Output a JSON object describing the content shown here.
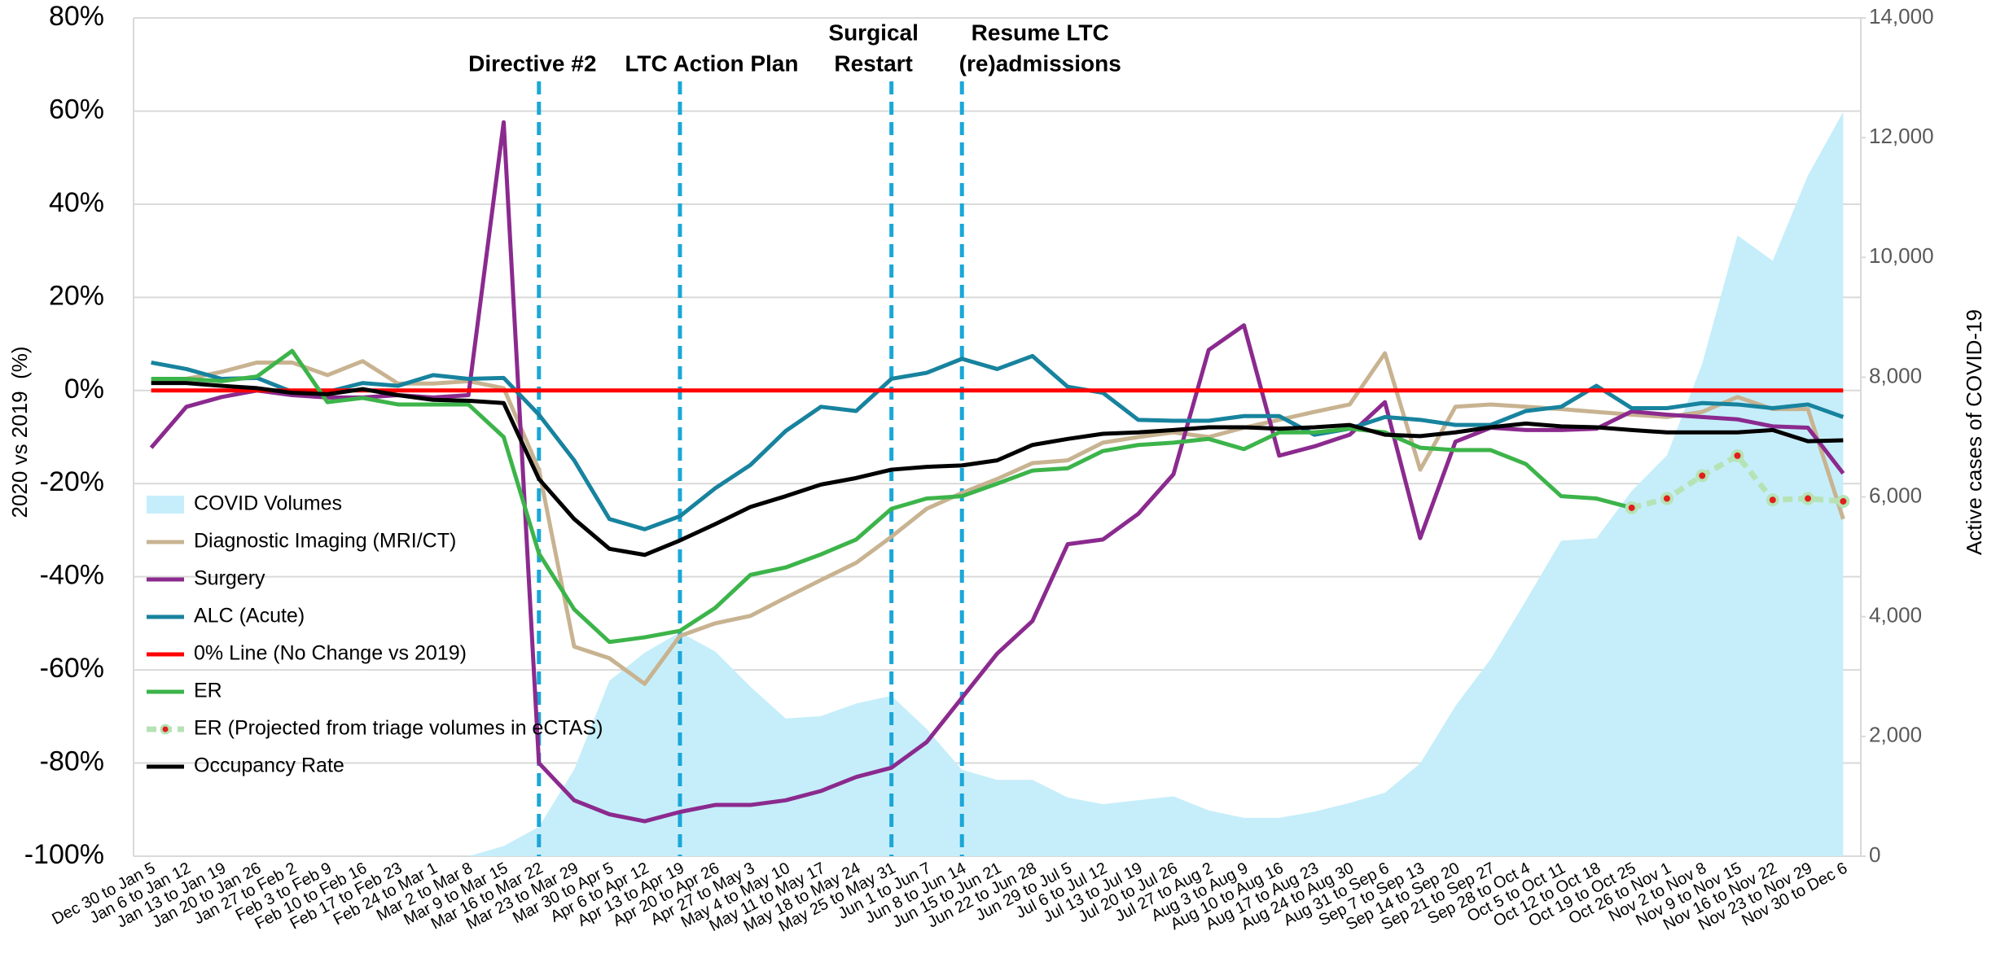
{
  "chart_data": {
    "type": "line",
    "y_label": "2020 vs 2019  (%)",
    "y2_label": "Active cases of COVID-19",
    "categories": [
      "Dec 30 to Jan 5",
      "Jan 6 to Jan 12",
      "Jan 13 to Jan 19",
      "Jan 20 to Jan 26",
      "Jan 27 to Feb 2",
      "Feb 3 to Feb 9",
      "Feb 10 to Feb 16",
      "Feb 17 to Feb 23",
      "Feb 24 to Mar 1",
      "Mar 2 to Mar 8",
      "Mar 9 to Mar 15",
      "Mar 16 to Mar 22",
      "Mar 23 to Mar 29",
      "Mar 30 to Apr 5",
      "Apr 6 to Apr 12",
      "Apr 13 to Apr 19",
      "Apr 20 to Apr 26",
      "Apr 27 to May 3",
      "May 4 to May 10",
      "May 11 to May 17",
      "May 18 to May 24",
      "May 25 to May 31",
      "Jun 1 to Jun 7",
      "Jun 8 to Jun 14",
      "Jun 15 to Jun 21",
      "Jun 22 to Jun 28",
      "Jun 29 to Jul 5",
      "Jul 6 to Jul 12",
      "Jul 13 to Jul 19",
      "Jul 20 to Jul 26",
      "Jul 27 to Aug 2",
      "Aug 3 to Aug 9",
      "Aug 10 to Aug 16",
      "Aug 17 to Aug 23",
      "Aug 24 to Aug 30",
      "Aug 31 to Sep 6",
      "Sep 7 to Sep 13",
      "Sep 14 to Sep 20",
      "Sep 21 to Sep 27",
      "Sep 28 to Oct 4",
      "Oct 5 to Oct 11",
      "Oct 12 to Oct 18",
      "Oct 19 to Oct 25",
      "Oct 26 to Nov 1",
      "Nov 2 to Nov 8",
      "Nov 9 to Nov 15",
      "Nov 16 to Nov 22",
      "Nov 23 to Nov 29",
      "Nov 30 to Dec 6"
    ],
    "series": [
      {
        "name": "COVID Volumes",
        "type": "area",
        "axis": "y2",
        "color": "#c6eefa",
        "values": [
          0,
          0,
          0,
          0,
          0,
          0,
          0,
          0,
          0,
          0,
          170,
          490,
          1450,
          2930,
          3400,
          3740,
          3420,
          2830,
          2300,
          2340,
          2550,
          2680,
          2125,
          1445,
          1275,
          1275,
          980,
          870,
          935,
          1000,
          765,
          640,
          640,
          745,
          890,
          1060,
          1550,
          2510,
          3295,
          4270,
          5270,
          5310,
          6100,
          6695,
          8225,
          10370,
          9945,
          11370,
          12430
        ]
      },
      {
        "name": "Diagnostic Imaging (MRI/CT)",
        "color": "#c8b391",
        "values": [
          2,
          2.5,
          4,
          6,
          6,
          3.3,
          6.3,
          1.5,
          1.5,
          2,
          0.5,
          -17,
          -55,
          -57.5,
          -63,
          -52.7,
          -50,
          -48.4,
          -44.5,
          -40.7,
          -37,
          -31.4,
          -25.4,
          -22,
          -19,
          -15.6,
          -15,
          -11.2,
          -10,
          -9,
          -10,
          -8,
          -6.3,
          -4.6,
          -3,
          8,
          -17,
          -3.5,
          -3,
          -3.5,
          -4,
          -4.6,
          -5.2,
          -5.7,
          -4.6,
          -1.4,
          -4,
          -4,
          -27.6
        ]
      },
      {
        "name": "Surgery",
        "color": "#8b2a8e",
        "values": [
          -12.3,
          -3.5,
          -1.4,
          0,
          -1,
          -1.5,
          -1.5,
          -1,
          -1.5,
          -1,
          57.6,
          -80,
          -88,
          -91,
          -92.5,
          -90.5,
          -89,
          -89,
          -88,
          -86,
          -83,
          -81,
          -75.5,
          -66,
          -56.5,
          -49.5,
          -33,
          -32,
          -26.5,
          -18,
          8.7,
          14,
          -14,
          -12,
          -9.5,
          -2.5,
          -31.7,
          -11,
          -8,
          -8.5,
          -8.5,
          -8.2,
          -4.5,
          -5.2,
          -5.7,
          -6.2,
          -7.7,
          -8,
          -17.8
        ]
      },
      {
        "name": "ALC (Acute)",
        "color": "#17839e",
        "values": [
          6,
          4.6,
          2.5,
          2.7,
          -0.3,
          -0.3,
          1.6,
          1,
          3.3,
          2.5,
          2.7,
          -5.2,
          -15,
          -27.6,
          -29.8,
          -27,
          -21,
          -16,
          -8.7,
          -3.5,
          -4.4,
          2.5,
          3.8,
          6.8,
          4.6,
          7.4,
          0.8,
          -0.5,
          -6.3,
          -6.5,
          -6.5,
          -5.5,
          -5.5,
          -9.5,
          -8.2,
          -5.7,
          -6.3,
          -7.4,
          -7.4,
          -4.4,
          -3.5,
          1,
          -3.8,
          -3.8,
          -2.7,
          -3,
          -3.8,
          -3,
          -5.7
        ]
      },
      {
        "name": "0% Line (No Change vs 2019)",
        "color": "#ff0000",
        "values": [
          0,
          0,
          0,
          0,
          0,
          0,
          0,
          0,
          0,
          0,
          0,
          0,
          0,
          0,
          0,
          0,
          0,
          0,
          0,
          0,
          0,
          0,
          0,
          0,
          0,
          0,
          0,
          0,
          0,
          0,
          0,
          0,
          0,
          0,
          0,
          0,
          0,
          0,
          0,
          0,
          0,
          0,
          0,
          0,
          0,
          0,
          0,
          0,
          0
        ]
      },
      {
        "name": "ER",
        "color": "#3cb44a",
        "values": [
          2.5,
          2.5,
          2,
          3,
          8.5,
          -2.5,
          -1.6,
          -3,
          -3,
          -3,
          -10,
          -35,
          -47,
          -54,
          -53,
          -51.6,
          -46.7,
          -39.6,
          -38,
          -35.2,
          -32,
          -25.4,
          -23.2,
          -22.7,
          -20,
          -17.2,
          -16.7,
          -13,
          -11.7,
          -11.2,
          -10.4,
          -12.6,
          -9,
          -9,
          -8.2,
          -9,
          -12.3,
          -12.8,
          -12.8,
          -15.8,
          -22.7,
          -23.2,
          -25.2,
          null,
          null,
          null,
          null,
          null,
          null
        ]
      },
      {
        "name": "ER (Projected from triage volumes in eCTAS)",
        "color": "#b6e3b6",
        "dashed": true,
        "marker_color": "#e0201b",
        "values": [
          null,
          null,
          null,
          null,
          null,
          null,
          null,
          null,
          null,
          null,
          null,
          null,
          null,
          null,
          null,
          null,
          null,
          null,
          null,
          null,
          null,
          null,
          null,
          null,
          null,
          null,
          null,
          null,
          null,
          null,
          null,
          null,
          null,
          null,
          null,
          null,
          null,
          null,
          null,
          null,
          null,
          null,
          -25.2,
          -23.2,
          -18.3,
          -14,
          -23.5,
          -23.2,
          -23.8
        ]
      },
      {
        "name": "Occupancy Rate",
        "color": "#000000",
        "values": [
          1.6,
          1.6,
          1,
          0.5,
          -0.5,
          -0.8,
          0.3,
          -1,
          -2,
          -2.2,
          -2.7,
          -19,
          -27.6,
          -34,
          -35.3,
          -32.2,
          -28.7,
          -25,
          -22.7,
          -20.2,
          -18.8,
          -17,
          -16.4,
          -16.1,
          -15,
          -11.7,
          -10.4,
          -9.3,
          -9,
          -8.5,
          -7.9,
          -7.9,
          -8.2,
          -7.9,
          -7.4,
          -9.5,
          -9.8,
          -9,
          -7.9,
          -7.1,
          -7.7,
          -7.9,
          -8.5,
          -9,
          -9,
          -9,
          -8.5,
          -10.9,
          -10.7
        ]
      }
    ],
    "ylim": [
      -100,
      80
    ],
    "yticks": [
      {
        "value": -100,
        "label": "-100%"
      },
      {
        "value": -80,
        "label": "-80%"
      },
      {
        "value": -60,
        "label": "-60%"
      },
      {
        "value": -40,
        "label": "-40%"
      },
      {
        "value": -20,
        "label": "-20%"
      },
      {
        "value": 0,
        "label": "0%"
      },
      {
        "value": 20,
        "label": "20%"
      },
      {
        "value": 40,
        "label": "40%"
      },
      {
        "value": 60,
        "label": "60%"
      },
      {
        "value": 80,
        "label": "80%"
      }
    ],
    "y2lim": [
      0,
      14000
    ],
    "y2ticks": [
      0,
      {
        "value": 2000,
        "label": "2,000"
      },
      {
        "value": 4000,
        "label": "4,000"
      },
      {
        "value": 6000,
        "label": "6,000"
      },
      {
        "value": 8000,
        "label": "8,000"
      },
      {
        "value": 10000,
        "label": "10,000"
      },
      {
        "value": 12000,
        "label": "12,000"
      },
      {
        "value": 14000,
        "label": "14,000"
      }
    ],
    "grid": true,
    "legend": "left",
    "annotations": [
      {
        "text": [
          "Directive #2"
        ],
        "x": "Mar 16 to Mar 22",
        "color": "#1aa7d8"
      },
      {
        "text": [
          "LTC Action Plan"
        ],
        "x": "Apr 13 to Apr 19",
        "color": "#1aa7d8"
      },
      {
        "text": [
          "Surgical",
          "Restart"
        ],
        "x": "May 25 to May 31",
        "color": "#1aa7d8"
      },
      {
        "text": [
          "Resume LTC",
          "(re)admissions"
        ],
        "x": "Jun 8 to Jun 14",
        "color": "#1aa7d8"
      }
    ]
  }
}
